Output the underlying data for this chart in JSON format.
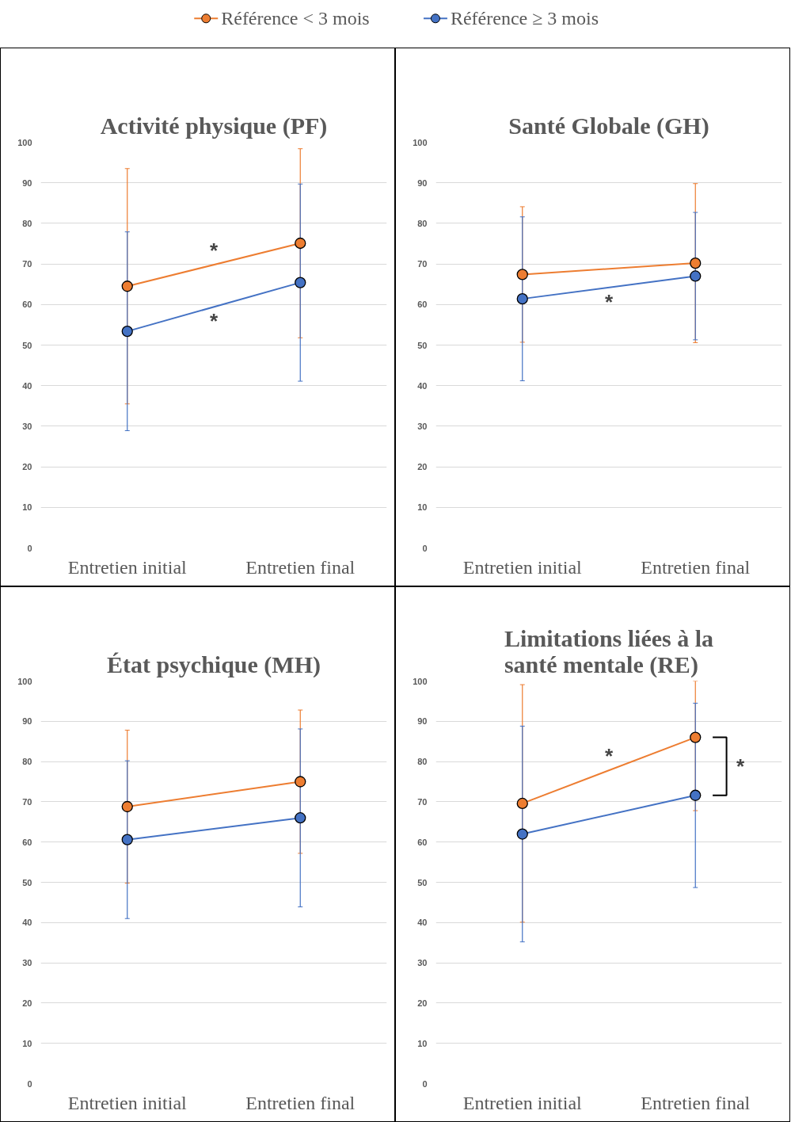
{
  "chart_data": [
    {
      "type": "line",
      "title": "Activité physique (PF)",
      "categories": [
        "Entretien initial",
        "Entretien final"
      ],
      "ylim": [
        0,
        100
      ],
      "yticks": [
        0,
        10,
        20,
        30,
        40,
        50,
        60,
        70,
        80,
        90,
        100
      ],
      "grid": "y",
      "legend": "top",
      "marker": "circle",
      "series": [
        {
          "name": "Référence < 3 mois",
          "color": "#ed7d31",
          "values": [
            64.5,
            75.1
          ],
          "errors": [
            29,
            23.3
          ]
        },
        {
          "name": "Référence ≥ 3 mois",
          "color": "#4472c4",
          "values": [
            53.4,
            65.4
          ],
          "errors": [
            24.5,
            24.3
          ]
        }
      ],
      "annotations": [
        "*",
        "*"
      ]
    },
    {
      "type": "line",
      "title": "Santé Globale (GH)",
      "categories": [
        "Entretien initial",
        "Entretien final"
      ],
      "ylim": [
        0,
        100
      ],
      "yticks": [
        0,
        10,
        20,
        30,
        40,
        50,
        60,
        70,
        80,
        90,
        100
      ],
      "grid": "y",
      "marker": "circle",
      "series": [
        {
          "color": "#ed7d31",
          "values": [
            67.4,
            70.2
          ],
          "errors": [
            16.7,
            19.6
          ]
        },
        {
          "color": "#4472c4",
          "values": [
            61.4,
            67
          ],
          "errors": [
            20.2,
            15.7
          ]
        }
      ],
      "annotations": [
        "*"
      ]
    },
    {
      "type": "line",
      "title": "État psychique (MH)",
      "categories": [
        "Entretien initial",
        "Entretien final"
      ],
      "ylim": [
        0,
        100
      ],
      "yticks": [
        0,
        10,
        20,
        30,
        40,
        50,
        60,
        70,
        80,
        90,
        100
      ],
      "grid": "y",
      "marker": "circle",
      "series": [
        {
          "color": "#ed7d31",
          "values": [
            68.8,
            75
          ],
          "errors": [
            19,
            17.8
          ]
        },
        {
          "color": "#4472c4",
          "values": [
            60.6,
            66
          ],
          "errors": [
            19.6,
            22.1
          ]
        }
      ]
    },
    {
      "type": "line",
      "title": "Limitations liées à la\nsanté  mentale (RE)",
      "categories": [
        "Entretien initial",
        "Entretien final"
      ],
      "ylim": [
        0,
        100
      ],
      "yticks": [
        0,
        10,
        20,
        30,
        40,
        50,
        60,
        70,
        80,
        90,
        100
      ],
      "grid": "y",
      "marker": "circle",
      "series": [
        {
          "color": "#ed7d31",
          "values": [
            69.6,
            86
          ],
          "errors": [
            29.5,
            [
              67.8,
              100
            ]
          ]
        },
        {
          "color": "#4472c4",
          "values": [
            62,
            71.6
          ],
          "errors": [
            26.8,
            22.9
          ]
        }
      ],
      "annotations": [
        "*",
        "*"
      ]
    }
  ]
}
